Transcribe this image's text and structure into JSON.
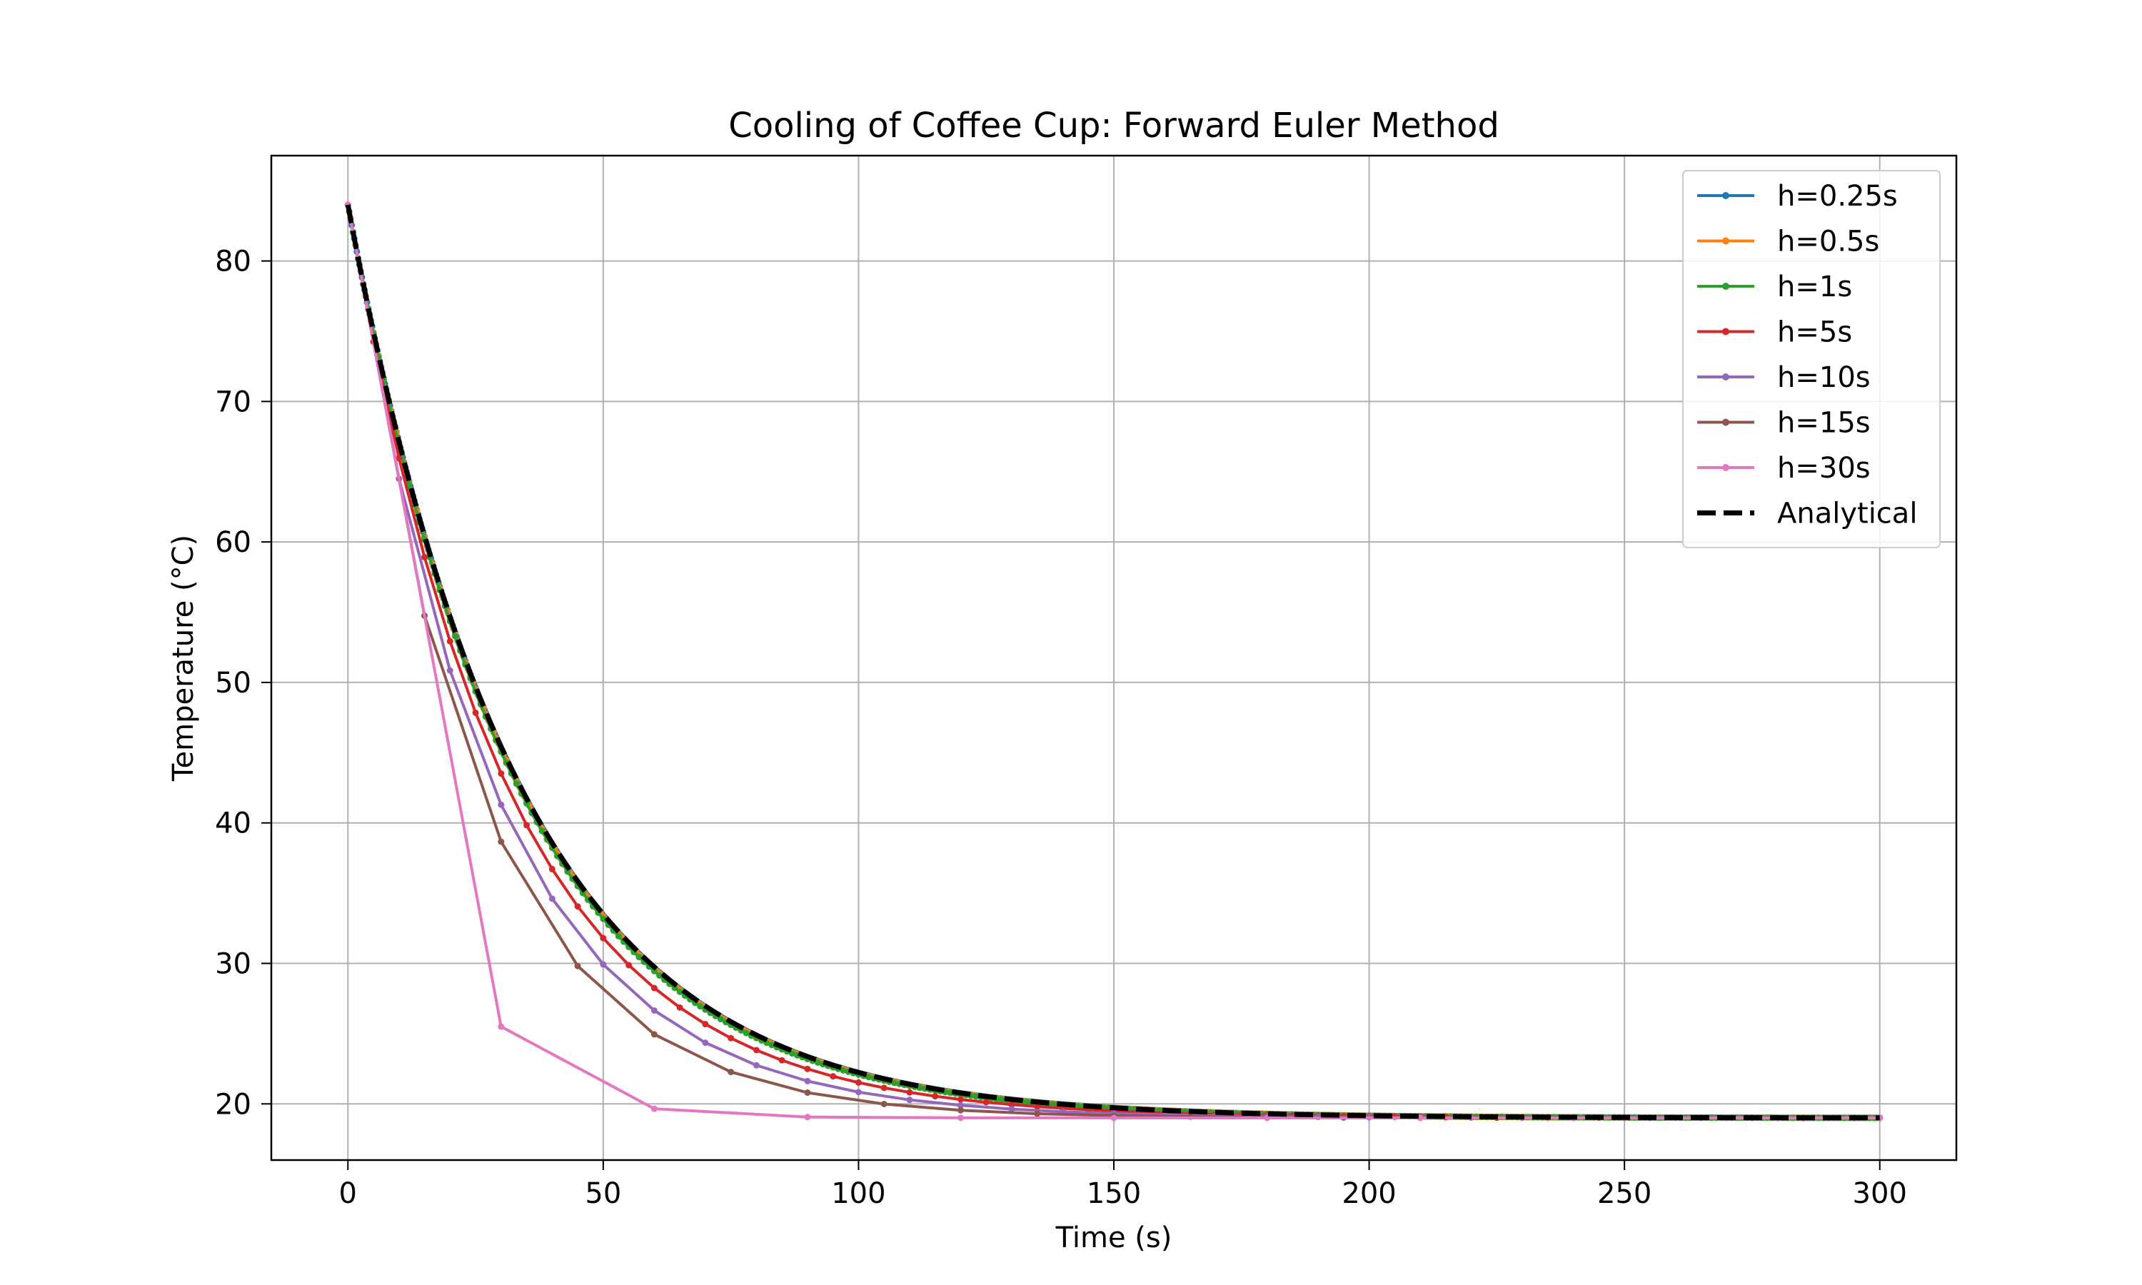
{
  "chart_data": {
    "type": "line",
    "title": "Cooling of Coffee Cup: Forward Euler Method",
    "xlabel": "Time (s)",
    "ylabel": "Temperature (°C)",
    "xlim": [
      -15,
      315
    ],
    "ylim": [
      16,
      87.5
    ],
    "xticks": [
      0,
      50,
      100,
      150,
      200,
      250,
      300
    ],
    "yticks": [
      20,
      30,
      40,
      50,
      60,
      70,
      80
    ],
    "grid": true,
    "legend_position": "top-right",
    "model": {
      "T0": 84,
      "T_ambient": 19,
      "k": 0.03
    },
    "series": [
      {
        "name": "h=0.25s",
        "step": 0.25,
        "color": "#1f77b4",
        "style": "solid-markers"
      },
      {
        "name": "h=0.5s",
        "step": 0.5,
        "color": "#ff7f0e",
        "style": "solid-markers"
      },
      {
        "name": "h=1s",
        "step": 1,
        "color": "#2ca02c",
        "style": "solid-markers"
      },
      {
        "name": "h=5s",
        "step": 5,
        "color": "#d62728",
        "style": "solid-markers"
      },
      {
        "name": "h=10s",
        "step": 10,
        "color": "#9467bd",
        "style": "solid-markers"
      },
      {
        "name": "h=15s",
        "step": 15,
        "color": "#8c564b",
        "style": "solid-markers"
      },
      {
        "name": "h=30s",
        "step": 30,
        "color": "#e377c2",
        "style": "solid-markers"
      },
      {
        "name": "Analytical",
        "step": 0,
        "color": "#000000",
        "style": "dashed"
      }
    ]
  }
}
